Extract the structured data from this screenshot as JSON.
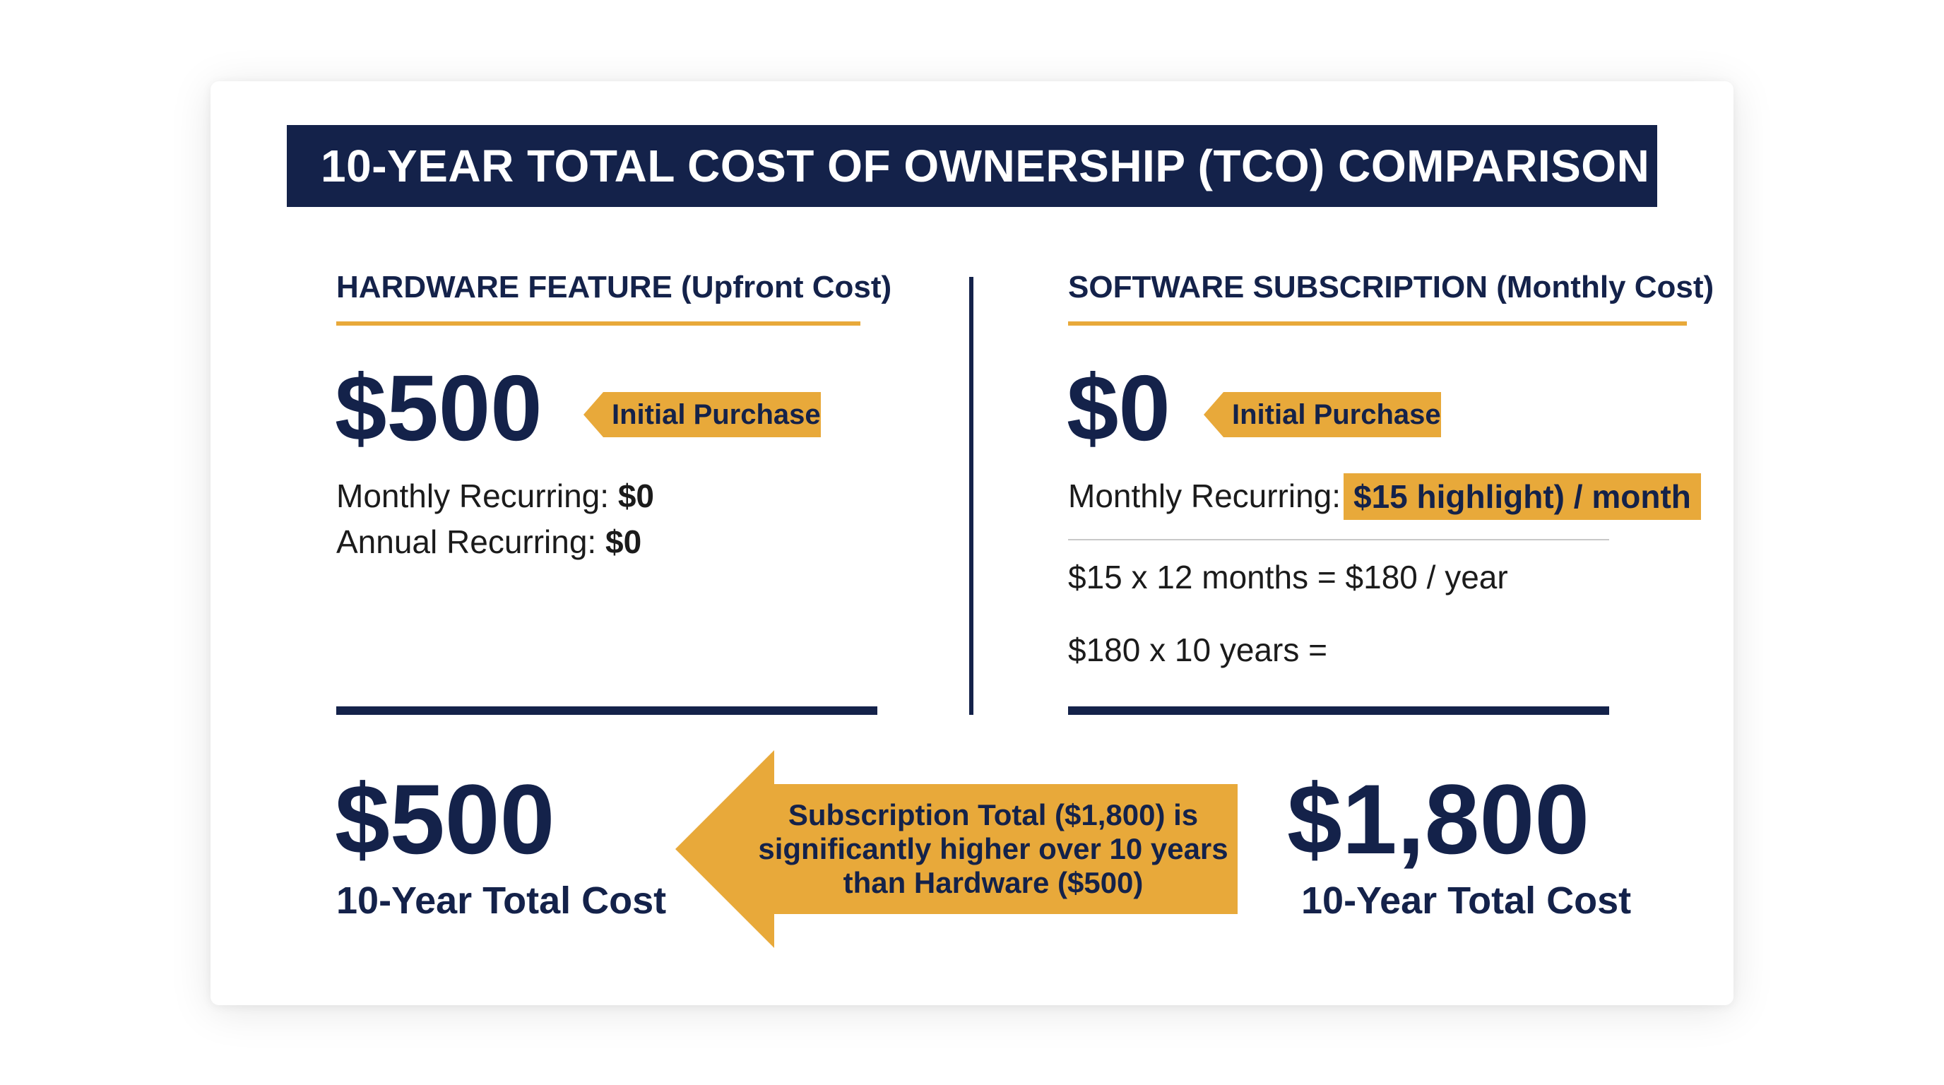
{
  "title": "10-YEAR TOTAL COST OF OWNERSHIP (TCO) COMPARISON",
  "hardware": {
    "heading": "HARDWARE FEATURE (Upfront Cost)",
    "amount": "$500",
    "tag": "Initial Purchase",
    "monthly_label": "Monthly Recurring:",
    "monthly_value": "$0",
    "annual_label": "Annual Recurring:",
    "annual_value": "$0",
    "total_amount": "$500",
    "total_label": "10-Year Total Cost"
  },
  "software": {
    "heading": "SOFTWARE SUBSCRIPTION (Monthly Cost)",
    "amount": "$0",
    "tag": "Initial Purchase",
    "monthly_label": "Monthly Recurring:",
    "monthly_highlight": "$15 highlight) / month",
    "calc_year": "$15 x 12 months = $180 / year",
    "calc_decade": "$180 x 10 years =",
    "total_amount": "$1,800",
    "total_label": "10-Year Total Cost"
  },
  "callout": {
    "line1": "Subscription Total ($1,800) is",
    "line2": "significantly higher over 10 years",
    "line3": "than Hardware ($500)"
  },
  "colors": {
    "navy": "#14224a",
    "gold": "#e8a93a"
  }
}
